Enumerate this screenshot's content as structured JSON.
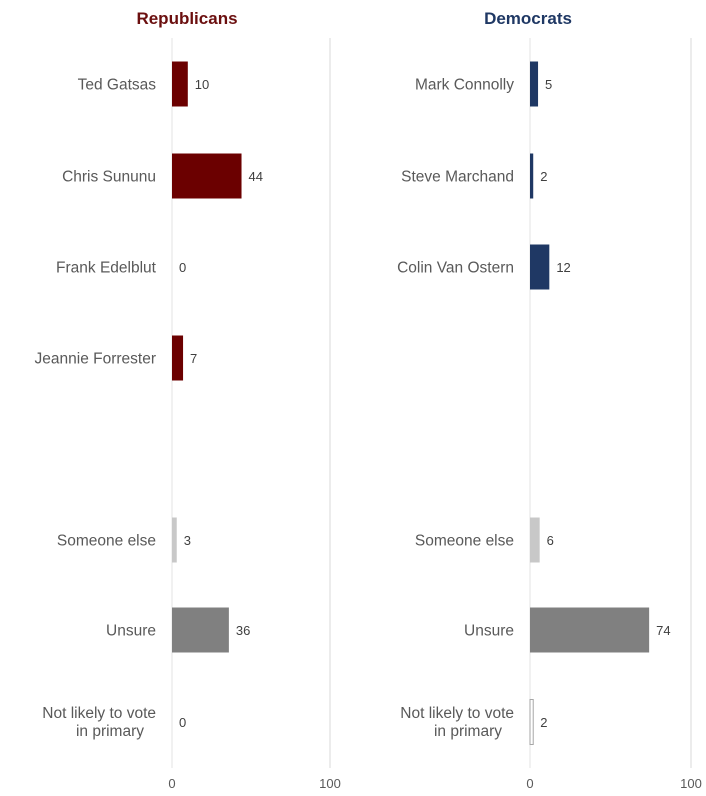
{
  "chart_data": [
    {
      "type": "bar",
      "orientation": "horizontal",
      "title": "Republicans",
      "title_color": "#6B0F0F",
      "xlim": [
        0,
        100
      ],
      "xticks": [
        0,
        100
      ],
      "grid": true,
      "bars": [
        {
          "label": [
            "Ted Gatsas"
          ],
          "value": 10,
          "color": "#6B0000",
          "group": "candidate"
        },
        {
          "label": [
            "Chris Sununu"
          ],
          "value": 44,
          "color": "#6B0000",
          "group": "candidate"
        },
        {
          "label": [
            "Frank Edelblut"
          ],
          "value": 0,
          "color": "#6B0000",
          "group": "candidate"
        },
        {
          "label": [
            "Jeannie Forrester"
          ],
          "value": 7,
          "color": "#6B0000",
          "group": "candidate"
        },
        {
          "label": [
            "Someone else"
          ],
          "value": 3,
          "color": "#C8C8C8",
          "group": "other"
        },
        {
          "label": [
            "Unsure"
          ],
          "value": 36,
          "color": "#808080",
          "group": "other"
        },
        {
          "label": [
            "Not likely to vote",
            "in primary"
          ],
          "value": 0,
          "color": "#FFFFFF",
          "outline": "#A6A6A6",
          "group": "other"
        }
      ]
    },
    {
      "type": "bar",
      "orientation": "horizontal",
      "title": "Democrats",
      "title_color": "#1F3864",
      "xlim": [
        0,
        100
      ],
      "xticks": [
        0,
        100
      ],
      "grid": true,
      "bars": [
        {
          "label": [
            "Mark Connolly"
          ],
          "value": 5,
          "color": "#1F3864",
          "group": "candidate"
        },
        {
          "label": [
            "Steve Marchand"
          ],
          "value": 2,
          "color": "#1F3864",
          "group": "candidate"
        },
        {
          "label": [
            "Colin Van Ostern"
          ],
          "value": 12,
          "color": "#1F3864",
          "group": "candidate"
        },
        {
          "label": [
            "Someone else"
          ],
          "value": 6,
          "color": "#C8C8C8",
          "group": "other"
        },
        {
          "label": [
            "Unsure"
          ],
          "value": 74,
          "color": "#808080",
          "group": "other"
        },
        {
          "label": [
            "Not likely to vote",
            "in primary"
          ],
          "value": 2,
          "color": "#FFFFFF",
          "outline": "#A6A6A6",
          "group": "other"
        }
      ]
    }
  ]
}
